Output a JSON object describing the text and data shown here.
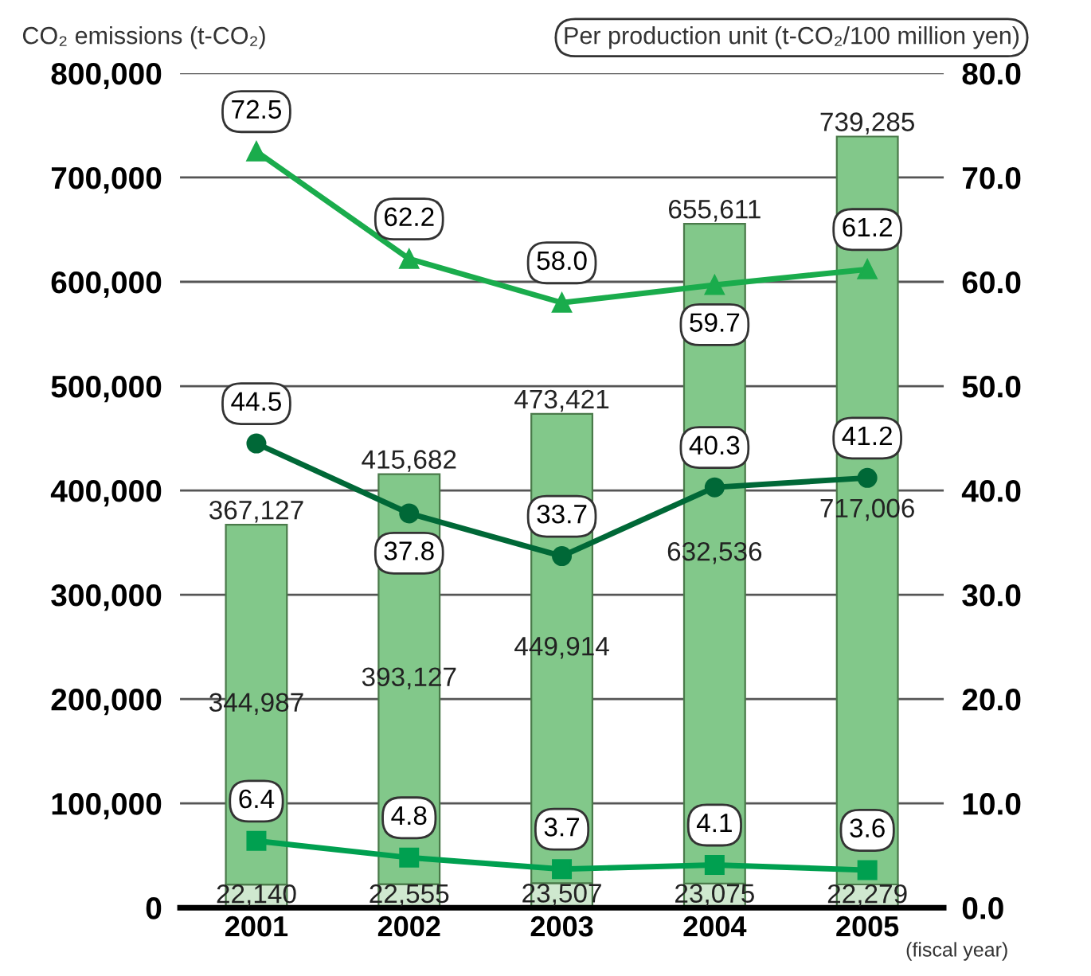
{
  "chart_data": {
    "type": "bar",
    "stacked": true,
    "ylabel": "CO₂ emissions (t-CO₂)",
    "y2label": "Per production unit (t-CO₂/100 million yen)",
    "annotations": [
      "(fiscal year)"
    ],
    "categories": [
      "2001",
      "2002",
      "2003",
      "2004",
      "2005"
    ],
    "series": [
      {
        "color": "#cfe8cf",
        "values": [
          22140,
          22555,
          23507,
          23075,
          22279
        ],
        "value_labels": [
          "22,140",
          "22,555",
          "23,507",
          "23,075",
          "22,279"
        ]
      },
      {
        "color": "#82c88a",
        "values": [
          344987,
          393127,
          449914,
          632536,
          717006
        ],
        "value_labels": [
          "344,987",
          "393,127",
          "449,914",
          "632,536",
          "717,006"
        ]
      },
      {
        "type": "line",
        "axis": "y2",
        "color": "#1aac4c",
        "marker": "triangle",
        "values": [
          72.5,
          62.2,
          58.0,
          59.7,
          61.2
        ],
        "value_labels": [
          "72.5",
          "62.2",
          "58.0",
          "59.7",
          "61.2"
        ]
      },
      {
        "type": "line",
        "axis": "y2",
        "color": "#006837",
        "marker": "circle",
        "values": [
          44.5,
          37.8,
          33.7,
          40.3,
          41.2
        ],
        "value_labels": [
          "44.5",
          "37.8",
          "33.7",
          "40.3",
          "41.2"
        ]
      },
      {
        "type": "line",
        "axis": "y2",
        "color": "#00a050",
        "marker": "square",
        "values": [
          6.4,
          4.8,
          3.7,
          4.1,
          3.6
        ],
        "value_labels": [
          "6.4",
          "4.8",
          "3.7",
          "4.1",
          "3.6"
        ]
      }
    ],
    "totals": [
      "367,127",
      "415,682",
      "473,421",
      "655,611",
      "739,285"
    ],
    "ylim": [
      0,
      800000
    ],
    "yticks": [
      {
        "value": 0,
        "label": "0"
      },
      {
        "value": 100000,
        "label": "100,000"
      },
      {
        "value": 200000,
        "label": "200,000"
      },
      {
        "value": 300000,
        "label": "300,000"
      },
      {
        "value": 400000,
        "label": "400,000"
      },
      {
        "value": 500000,
        "label": "500,000"
      },
      {
        "value": 600000,
        "label": "600,000"
      },
      {
        "value": 700000,
        "label": "700,000"
      },
      {
        "value": 800000,
        "label": "800,000"
      }
    ],
    "y2lim": [
      0,
      80
    ],
    "y2ticks": [
      {
        "value": 0,
        "label": "0.0"
      },
      {
        "value": 10,
        "label": "10.0"
      },
      {
        "value": 20,
        "label": "20.0"
      },
      {
        "value": 30,
        "label": "30.0"
      },
      {
        "value": 40,
        "label": "40.0"
      },
      {
        "value": 50,
        "label": "50.0"
      },
      {
        "value": 60,
        "label": "60.0"
      },
      {
        "value": 70,
        "label": "70.0"
      },
      {
        "value": 80,
        "label": "80.0"
      }
    ],
    "grid": "y",
    "line_style": "solid"
  }
}
